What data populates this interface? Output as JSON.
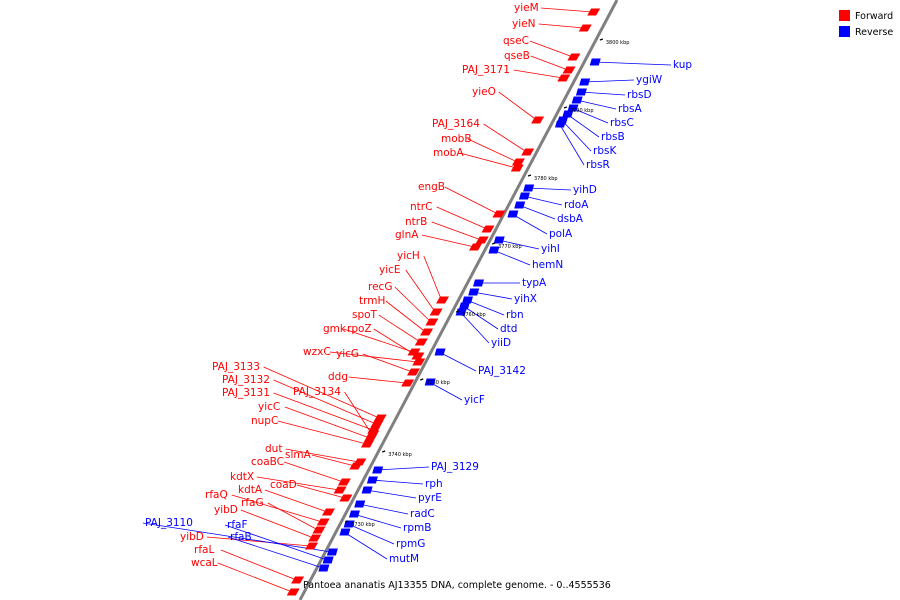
{
  "colors": {
    "forward": "#ff0000",
    "reverse": "#0000ff",
    "axis": "#808080"
  },
  "legend": [
    {
      "label": "Forward",
      "strand": "forward"
    },
    {
      "label": "Reverse",
      "strand": "reverse"
    }
  ],
  "caption": "Pantoea ananatis AJ13355 DNA, complete genome. - 0..4555536",
  "ticks": [
    "3800 kbp",
    "3790 kbp",
    "3780 kbp",
    "3770 kbp",
    "3760 kbp",
    "3750 kbp",
    "3740 kbp",
    "3730 kbp"
  ],
  "forward_genes": [
    "yieM",
    "yieN",
    "qseC",
    "qseB",
    "PAJ_3171",
    "yieO",
    "PAJ_3164",
    "mobB",
    "mobA",
    "engB",
    "ntrC",
    "ntrB",
    "glnA",
    "yicH",
    "yicE",
    "recG",
    "trmH",
    "spoT",
    "gmk",
    "rpoZ",
    "wzxC",
    "yicG",
    "ddg",
    "PAJ_3133",
    "PAJ_3132",
    "PAJ_3131",
    "PAJ_3134",
    "yicC",
    "nupC",
    "dut",
    "slmA",
    "coaBC",
    "kdtX",
    "coaD",
    "kdtA",
    "rfaQ",
    "rfaG",
    "yibD",
    "yibD",
    "rfaL",
    "wcaL"
  ],
  "reverse_genes": [
    "kup",
    "ygiW",
    "rbsD",
    "rbsA",
    "rbsC",
    "rbsB",
    "rbsK",
    "rbsR",
    "yihD",
    "rdoA",
    "dsbA",
    "polA",
    "yihI",
    "hemN",
    "typA",
    "yihX",
    "rbn",
    "dtd",
    "yiiD",
    "PAJ_3142",
    "yicF",
    "PAJ_3129",
    "rph",
    "pyrE",
    "radC",
    "rpmB",
    "rpmG",
    "mutM",
    "PAJ_3110",
    "rfaF",
    "rfaB"
  ]
}
